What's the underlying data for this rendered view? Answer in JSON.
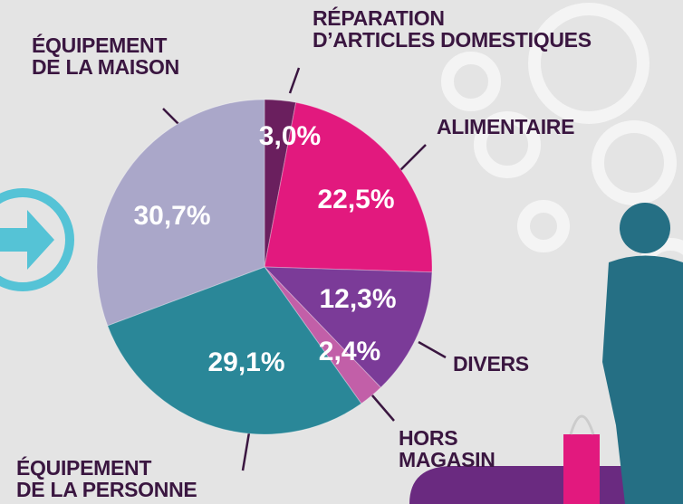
{
  "chart_data": {
    "type": "pie",
    "categories": [
      "RÉPARATION\nD’ARTICLES DOMESTIQUES",
      "ALIMENTAIRE",
      "DIVERS",
      "HORS\nMAGASIN",
      "ÉQUIPEMENT\nDE LA PERSONNE",
      "ÉQUIPEMENT\nDE LA MAISON"
    ],
    "values": [
      3.0,
      22.5,
      12.3,
      2.4,
      29.1,
      30.7
    ],
    "value_labels": [
      "3,0%",
      "22,5%",
      "12,3%",
      "2,4%",
      "29,1%",
      "30,7%"
    ],
    "colors": [
      "#6a1f5e",
      "#e2197e",
      "#7b3b98",
      "#c25fa8",
      "#2a8798",
      "#aaa7c9"
    ]
  }
}
